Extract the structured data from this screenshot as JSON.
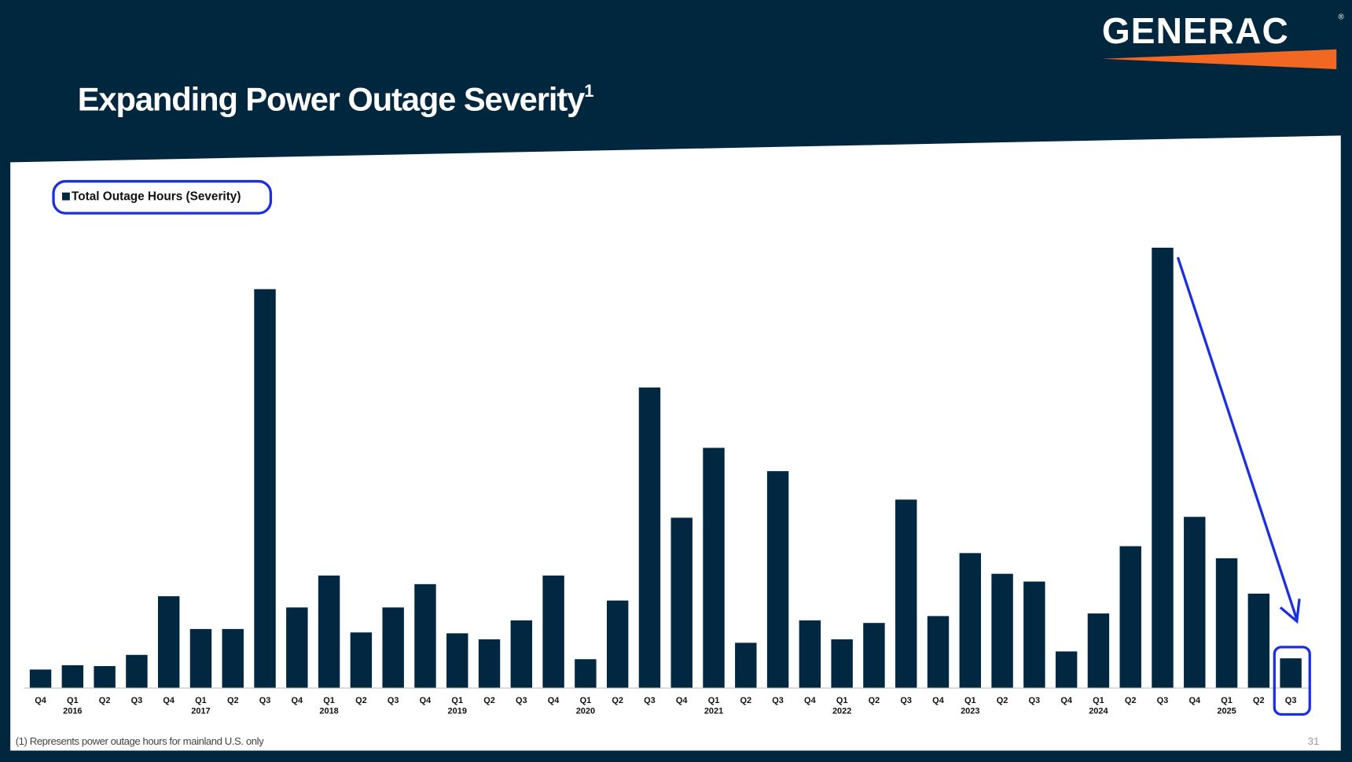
{
  "logo": {
    "text": "GENERAC",
    "mark": "®"
  },
  "header": {
    "title": "Expanding Power Outage Severity",
    "title_sup": "1"
  },
  "chart_data": {
    "type": "bar",
    "categories": [
      "Q4",
      "Q1",
      "Q2",
      "Q3",
      "Q4",
      "Q1",
      "Q2",
      "Q3",
      "Q4",
      "Q1",
      "Q2",
      "Q3",
      "Q4",
      "Q1",
      "Q2",
      "Q3",
      "Q4",
      "Q1",
      "Q2",
      "Q3",
      "Q4",
      "Q1",
      "Q2",
      "Q3",
      "Q4",
      "Q1",
      "Q2",
      "Q3",
      "Q4",
      "Q1",
      "Q2",
      "Q3",
      "Q4",
      "Q1",
      "Q2",
      "Q3",
      "Q4",
      "Q1",
      "Q2",
      "Q3"
    ],
    "years": [
      null,
      "2016",
      null,
      null,
      null,
      "2017",
      null,
      null,
      null,
      "2018",
      null,
      null,
      null,
      "2019",
      null,
      null,
      null,
      "2020",
      null,
      null,
      null,
      "2021",
      null,
      null,
      null,
      "2022",
      null,
      null,
      null,
      "2023",
      null,
      null,
      null,
      "2024",
      null,
      null,
      null,
      "2025",
      null,
      null
    ],
    "series": [
      {
        "name": "Total Outage Hours (Severity)",
        "color": "#012840",
        "values": [
          21,
          26,
          25,
          38,
          106,
          68,
          68,
          462,
          93,
          130,
          64,
          93,
          120,
          63,
          56,
          78,
          130,
          33,
          101,
          348,
          197,
          278,
          52,
          251,
          78,
          56,
          75,
          218,
          83,
          156,
          132,
          123,
          42,
          86,
          164,
          510,
          198,
          150,
          109,
          34
        ]
      }
    ]
  },
  "footnote": "(1) Represents power outage hours for mainland U.S. only",
  "page_number": "31"
}
